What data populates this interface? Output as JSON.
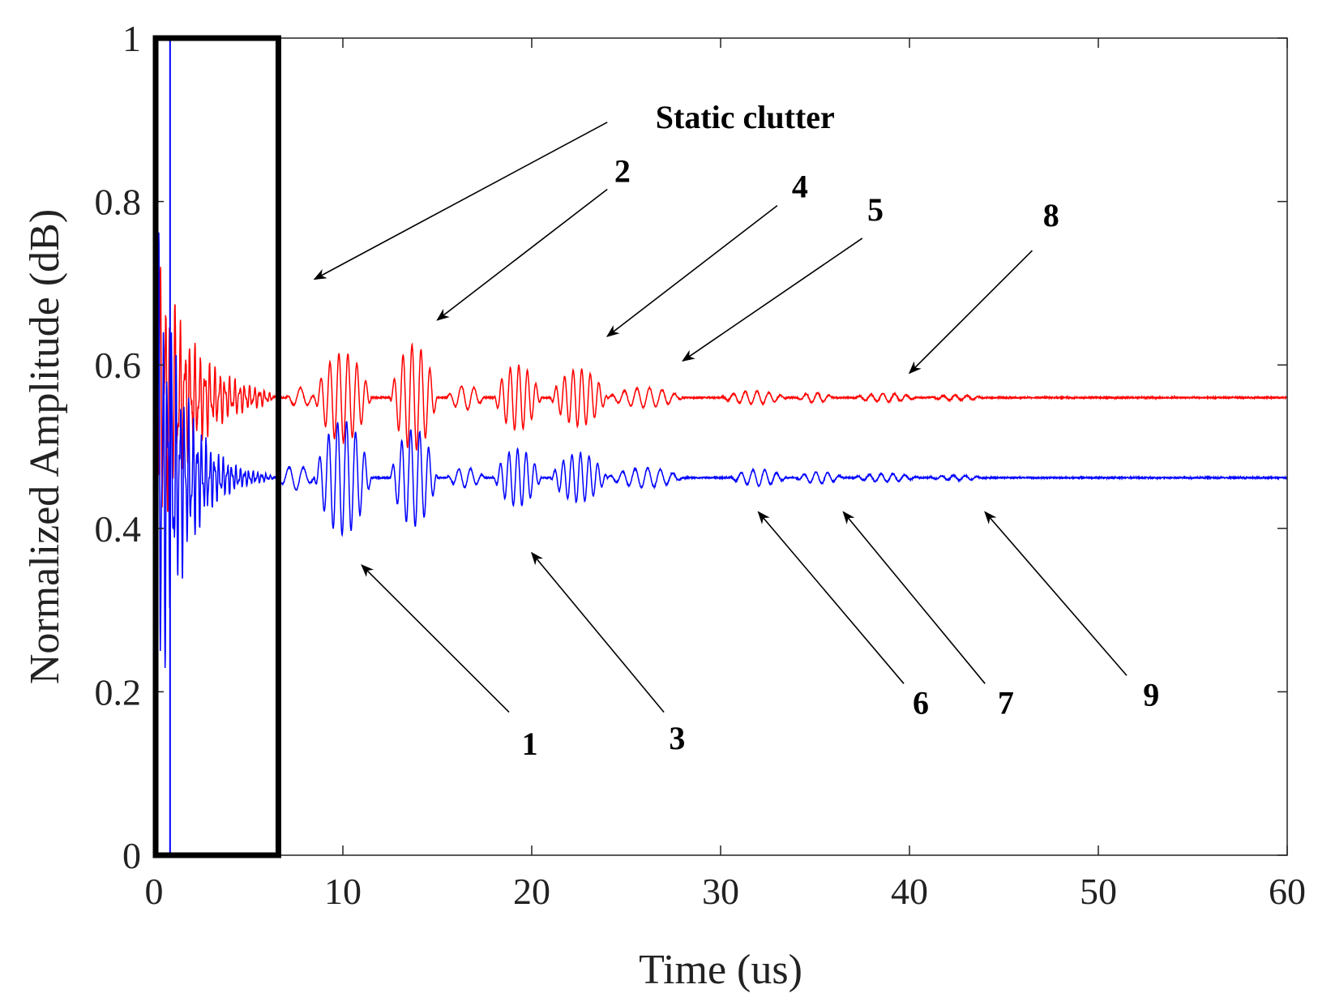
{
  "chart_data": {
    "type": "line",
    "xlabel": "Time (us)",
    "ylabel": "Normalized Amplitude (dB)",
    "xlim": [
      0,
      60
    ],
    "ylim": [
      0,
      1
    ],
    "x_ticks": [
      0,
      10,
      20,
      30,
      40,
      50,
      60
    ],
    "y_ticks": [
      0,
      0.2,
      0.4,
      0.6,
      0.8,
      1
    ],
    "x_tick_labels": [
      "0",
      "10",
      "20",
      "30",
      "40",
      "50",
      "60"
    ],
    "y_tick_labels": [
      "0",
      "0.2",
      "0.4",
      "0.6",
      "0.8",
      "1"
    ],
    "grid": false,
    "series": [
      {
        "name": "red signal",
        "color": "#ff0000",
        "baseline": 0.56,
        "segments": [
          {
            "x_start": 0,
            "x_end": 6.5,
            "initial_amplitude": 0.2,
            "decay_us": 2,
            "frequency_per_us": 3.8
          },
          {
            "x_start": 7,
            "x_end": 8.5,
            "amplitude": 0.012,
            "frequency_per_us": 1.3
          },
          {
            "x_start": 8.5,
            "x_end": 11.5,
            "amplitude": 0.055,
            "frequency_per_us": 2.1
          },
          {
            "x_start": 12.5,
            "x_end": 15,
            "amplitude": 0.065,
            "frequency_per_us": 2.1
          },
          {
            "x_start": 15.5,
            "x_end": 17.5,
            "amplitude": 0.015,
            "frequency_per_us": 1.5
          },
          {
            "x_start": 18,
            "x_end": 20.5,
            "amplitude": 0.04,
            "frequency_per_us": 2.2
          },
          {
            "x_start": 21,
            "x_end": 24,
            "amplitude": 0.035,
            "frequency_per_us": 2.2
          },
          {
            "x_start": 24,
            "x_end": 28,
            "amplitude": 0.012,
            "frequency_per_us": 1.5
          },
          {
            "x_start": 30,
            "x_end": 33.5,
            "amplitude": 0.008,
            "frequency_per_us": 1.6
          },
          {
            "x_start": 34,
            "x_end": 36,
            "amplitude": 0.006,
            "frequency_per_us": 1.6
          },
          {
            "x_start": 37,
            "x_end": 40.5,
            "amplitude": 0.005,
            "frequency_per_us": 1.6
          },
          {
            "x_start": 41,
            "x_end": 44,
            "amplitude": 0.003,
            "frequency_per_us": 1.6
          }
        ]
      },
      {
        "name": "blue signal",
        "color": "#0000ff",
        "baseline": 0.462,
        "segments": [
          {
            "x_start": 0,
            "x_end": 6.5,
            "initial_amplitude": 0.35,
            "decay_us": 1.4,
            "frequency_per_us": 4.4
          },
          {
            "x_start": 6.5,
            "x_end": 8.5,
            "amplitude": 0.015,
            "frequency_per_us": 1.3
          },
          {
            "x_start": 8.5,
            "x_end": 11.5,
            "amplitude": 0.07,
            "frequency_per_us": 2.1
          },
          {
            "x_start": 12.5,
            "x_end": 15,
            "amplitude": 0.06,
            "frequency_per_us": 2.1
          },
          {
            "x_start": 15.5,
            "x_end": 17.5,
            "amplitude": 0.012,
            "frequency_per_us": 1.6
          },
          {
            "x_start": 18,
            "x_end": 20.5,
            "amplitude": 0.035,
            "frequency_per_us": 2.2
          },
          {
            "x_start": 21,
            "x_end": 24,
            "amplitude": 0.03,
            "frequency_per_us": 2.2
          },
          {
            "x_start": 24,
            "x_end": 28,
            "amplitude": 0.012,
            "frequency_per_us": 1.5
          },
          {
            "x_start": 30.5,
            "x_end": 33.5,
            "amplitude": 0.01,
            "frequency_per_us": 1.6
          },
          {
            "x_start": 34,
            "x_end": 36.5,
            "amplitude": 0.007,
            "frequency_per_us": 1.6
          },
          {
            "x_start": 37,
            "x_end": 40.5,
            "amplitude": 0.005,
            "frequency_per_us": 1.6
          },
          {
            "x_start": 41,
            "x_end": 44,
            "amplitude": 0.003,
            "frequency_per_us": 1.6
          }
        ]
      }
    ],
    "highlight_box": {
      "x_start": 0,
      "x_end": 6.5,
      "y_start": 0,
      "y_end": 1,
      "color": "#000000"
    },
    "annotations": [
      {
        "id": "static-clutter",
        "text": "Static clutter",
        "text_x": 31.3,
        "text_y": 0.89,
        "arrow_from": [
          24,
          0.897
        ],
        "arrow_to": [
          8.5,
          0.705
        ]
      },
      {
        "id": "2",
        "text": "2",
        "text_x": 24.8,
        "text_y": 0.824,
        "arrow_from": [
          24,
          0.815
        ],
        "arrow_to": [
          15,
          0.655
        ]
      },
      {
        "id": "4",
        "text": "4",
        "text_x": 34.2,
        "text_y": 0.805,
        "arrow_from": [
          33,
          0.795
        ],
        "arrow_to": [
          24,
          0.635
        ]
      },
      {
        "id": "5",
        "text": "5",
        "text_x": 38.2,
        "text_y": 0.777,
        "arrow_from": [
          37.5,
          0.755
        ],
        "arrow_to": [
          28,
          0.605
        ]
      },
      {
        "id": "8",
        "text": "8",
        "text_x": 47.5,
        "text_y": 0.77,
        "arrow_from": [
          46.5,
          0.74
        ],
        "arrow_to": [
          40,
          0.59
        ]
      },
      {
        "id": "1",
        "text": "1",
        "text_x": 19.9,
        "text_y": 0.123,
        "arrow_from": [
          18.8,
          0.175
        ],
        "arrow_to": [
          11,
          0.355
        ]
      },
      {
        "id": "3",
        "text": "3",
        "text_x": 27.7,
        "text_y": 0.13,
        "arrow_from": [
          27,
          0.175
        ],
        "arrow_to": [
          20,
          0.37
        ]
      },
      {
        "id": "6",
        "text": "6",
        "text_x": 40.6,
        "text_y": 0.173,
        "arrow_from": [
          39.7,
          0.21
        ],
        "arrow_to": [
          32,
          0.42
        ]
      },
      {
        "id": "7",
        "text": "7",
        "text_x": 45.1,
        "text_y": 0.173,
        "arrow_from": [
          44,
          0.21
        ],
        "arrow_to": [
          36.5,
          0.42
        ]
      },
      {
        "id": "9",
        "text": "9",
        "text_x": 52.8,
        "text_y": 0.183,
        "arrow_from": [
          51.5,
          0.22
        ],
        "arrow_to": [
          44,
          0.42
        ]
      }
    ]
  }
}
